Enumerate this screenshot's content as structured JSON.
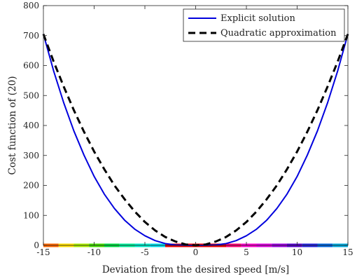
{
  "chart_data": {
    "type": "line",
    "title": "",
    "xlabel": "Deviation from the desired speed [m/s]",
    "ylabel": "Cost function of (20)",
    "xlim": [
      -15,
      15
    ],
    "ylim": [
      0,
      800
    ],
    "xticks": [
      -15,
      -10,
      -5,
      0,
      5,
      10,
      15
    ],
    "yticks": [
      0,
      100,
      200,
      300,
      400,
      500,
      600,
      700,
      800
    ],
    "xtick_labels": [
      "-15",
      "-10",
      "-5",
      "0",
      "5",
      "10",
      "15"
    ],
    "ytick_labels": [
      "0",
      "100",
      "200",
      "300",
      "400",
      "500",
      "600",
      "700",
      "800"
    ],
    "grid": false,
    "legend_position": "top-right",
    "series": [
      {
        "name": "Explicit solution",
        "color": "#0000dd",
        "style": "solid",
        "x": [
          -15,
          -14,
          -13,
          -12,
          -11,
          -10,
          -9,
          -8,
          -7,
          -6,
          -5,
          -4,
          -3,
          -2,
          -1,
          0,
          1,
          2,
          3,
          4,
          5,
          6,
          7,
          8,
          9,
          10,
          11,
          12,
          13,
          14,
          15
        ],
        "y": [
          705,
          583,
          476,
          382,
          301,
          230,
          171,
          123,
          84,
          54,
          32,
          16,
          6,
          1.5,
          0.2,
          0,
          0.2,
          1.5,
          6,
          16,
          32,
          54,
          84,
          123,
          171,
          230,
          301,
          382,
          476,
          583,
          705
        ]
      },
      {
        "name": "Quadratic approximation",
        "color": "#000000",
        "style": "dashed",
        "x": [
          -15,
          -14,
          -13,
          -12,
          -11,
          -10,
          -9,
          -8,
          -7,
          -6,
          -5,
          -4,
          -3,
          -2,
          -1,
          0,
          1,
          2,
          3,
          4,
          5,
          6,
          7,
          8,
          9,
          10,
          11,
          12,
          13,
          14,
          15
        ],
        "y": [
          705,
          614,
          530,
          451,
          379,
          313,
          254,
          200,
          154,
          113,
          78,
          50,
          28,
          13,
          3,
          0,
          3,
          13,
          28,
          50,
          78,
          113,
          154,
          200,
          254,
          313,
          379,
          451,
          530,
          614,
          705
        ]
      }
    ],
    "color_band": {
      "y": 0,
      "segments": [
        {
          "x0": -15,
          "x1": -13.5,
          "color": "#ff6600"
        },
        {
          "x0": -13.5,
          "x1": -12,
          "color": "#ffdd00"
        },
        {
          "x0": -12,
          "x1": -10.5,
          "color": "#aaee00"
        },
        {
          "x0": -10.5,
          "x1": -9,
          "color": "#44dd00"
        },
        {
          "x0": -9,
          "x1": -7.5,
          "color": "#00dd44"
        },
        {
          "x0": -7.5,
          "x1": -6,
          "color": "#00ee99"
        },
        {
          "x0": -6,
          "x1": -4.5,
          "color": "#00eecc"
        },
        {
          "x0": -4.5,
          "x1": -3,
          "color": "#00ddee"
        },
        {
          "x0": -3,
          "x1": 0,
          "color": "#ee0000"
        },
        {
          "x0": 0,
          "x1": 3,
          "color": "#ee0000"
        },
        {
          "x0": 3,
          "x1": 4.5,
          "color": "#ff0077"
        },
        {
          "x0": 4.5,
          "x1": 6,
          "color": "#ff00cc"
        },
        {
          "x0": 6,
          "x1": 7.5,
          "color": "#dd00dd"
        },
        {
          "x0": 7.5,
          "x1": 9,
          "color": "#9900dd"
        },
        {
          "x0": 9,
          "x1": 10.5,
          "color": "#5500cc"
        },
        {
          "x0": 10.5,
          "x1": 12,
          "color": "#2222dd"
        },
        {
          "x0": 12,
          "x1": 13.5,
          "color": "#0066dd"
        },
        {
          "x0": 13.5,
          "x1": 15,
          "color": "#00aadd"
        }
      ]
    }
  }
}
